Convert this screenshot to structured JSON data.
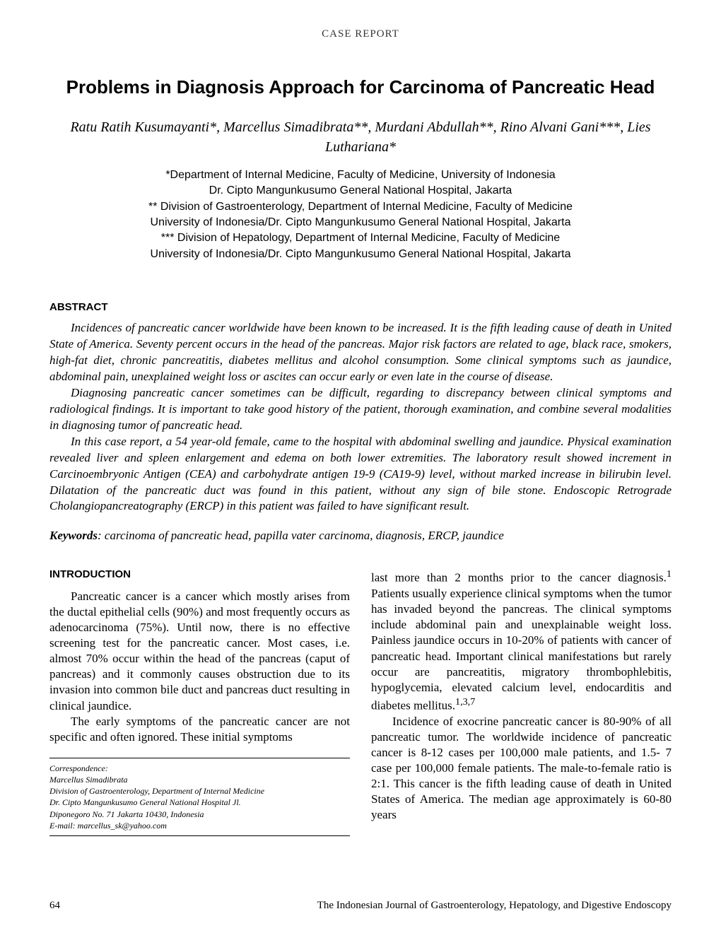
{
  "reportType": "CASE REPORT",
  "title": "Problems in Diagnosis Approach for Carcinoma of Pancreatic Head",
  "authors": "Ratu Ratih Kusumayanti*, Marcellus Simadibrata**, Murdani Abdullah**, Rino Alvani Gani***, Lies Luthariana*",
  "affiliations": {
    "line1": "*Department of Internal Medicine, Faculty of Medicine, University of Indonesia",
    "line2": "Dr. Cipto Mangunkusumo General National Hospital, Jakarta",
    "line3": "** Division of Gastroenterology, Department of Internal Medicine, Faculty of Medicine",
    "line4": "University of Indonesia/Dr. Cipto Mangunkusumo General National Hospital, Jakarta",
    "line5": "*** Division of Hepatology, Department of Internal Medicine, Faculty of Medicine",
    "line6": "University of Indonesia/Dr. Cipto Mangunkusumo General National Hospital, Jakarta"
  },
  "abstractHeading": "ABSTRACT",
  "abstract": {
    "p1": "Incidences of pancreatic cancer worldwide have been known to be increased. It is the fifth leading cause of death in United State of America. Seventy percent occurs in the head of the pancreas. Major risk factors are related to age, black race, smokers, high-fat diet, chronic pancreatitis, diabetes mellitus and alcohol consumption. Some clinical symptoms such as jaundice, abdominal pain, unexplained weight loss or ascites can occur early or even late in the course of disease.",
    "p2": "Diagnosing pancreatic cancer sometimes can be difficult, regarding to discrepancy between clinical symptoms and radiological findings. It is important to take good history of the patient, thorough examination, and combine several modalities in diagnosing tumor of pancreatic head.",
    "p3": "In this case report, a 54 year-old female, came to the hospital with abdominal swelling and jaundice. Physical examination revealed liver and spleen enlargement and edema on both lower extremities. The laboratory result showed increment in Carcinoembryonic Antigen (CEA) and carbohydrate antigen 19-9 (CA19-9) level, without marked increase in bilirubin level. Dilatation of the pancreatic duct was found in this patient, without any sign of bile stone. Endoscopic Retrograde Cholangiopancreatography (ERCP) in this patient was failed to have significant result."
  },
  "keywordsLabel": "Keywords",
  "keywords": ": carcinoma of pancreatic head, papilla vater carcinoma, diagnosis, ERCP, jaundice",
  "introHeading": "INTRODUCTION",
  "intro": {
    "leftP1": "Pancreatic cancer is a cancer which mostly arises from the ductal epithelial cells (90%) and most frequently occurs as adenocarcinoma (75%). Until now, there is no effective screening test for the pancreatic cancer. Most cases, i.e. almost 70% occur within the head of the pancreas (caput of pancreas) and it commonly causes obstruction due to its invasion into common bile duct and pancreas duct resulting in clinical jaundice.",
    "leftP2": "The early symptoms of the pancreatic cancer are not specific and often ignored. These initial symptoms",
    "rightP1a": "last more than 2 months prior to the cancer diagnosis.",
    "rightP1b": "Patients usually experience clinical symptoms when the tumor has invaded beyond the pancreas. The clinical symptoms include abdominal pain and unexplainable weight loss. Painless jaundice occurs in 10-20% of patients with cancer of pancreatic head. Important clinical manifestations but rarely occur are pancreatitis, migratory thrombophlebitis, hypoglycemia, elevated calcium level, endocarditis and diabetes mellitus.",
    "rightP2": "Incidence of exocrine pancreatic cancer is 80-90% of all pancreatic tumor. The worldwide incidence of pancreatic cancer is 8-12 cases per 100,000 male patients, and 1.5- 7 case per 100,000 female patients. The male-to-female ratio is 2:1. This cancer is the fifth leading cause of death in United States of America. The median age approximately is 60-80 years"
  },
  "correspondence": {
    "heading": "Correspondence:",
    "name": "Marcellus Simadibrata",
    "line1": "Division of Gastroenterology, Department of Internal Medicine",
    "line2": "Dr. Cipto Mangunkusumo General National Hospital Jl.",
    "line3": "Diponegoro No. 71 Jakarta 10430, Indonesia",
    "email": "E-mail: marcellus_sk@yahoo.com"
  },
  "pageNumber": "64",
  "journalName": "The Indonesian Journal of Gastroenterology, Hepatology, and Digestive Endoscopy",
  "refs": {
    "ref1": "1",
    "ref137": "1,3,7"
  }
}
